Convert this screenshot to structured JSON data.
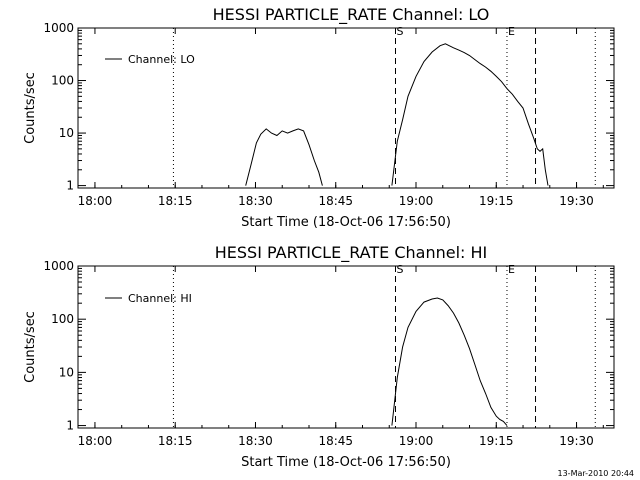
{
  "page": {
    "footer_stamp": "13-Mar-2010 20:44"
  },
  "chart_data": [
    {
      "type": "line",
      "title": "HESSI PARTICLE_RATE Channel: LO",
      "xlabel": "Start Time (18-Oct-06 17:56:50)",
      "ylabel": "Counts/sec",
      "yscale": "log",
      "xlim": [
        "17:56:50",
        "19:37:00"
      ],
      "ylim": [
        0.9,
        1000
      ],
      "x_tick_labels": [
        "18:00",
        "18:15",
        "18:30",
        "18:45",
        "19:00",
        "19:15",
        "19:30"
      ],
      "y_tick_labels": [
        "1",
        "10",
        "100",
        "1000"
      ],
      "legend": {
        "placement": "top-left",
        "label": "Channel: LO"
      },
      "markers": [
        {
          "time": "18:14:40",
          "style": "dotted",
          "label": ""
        },
        {
          "time": "18:56:10",
          "style": "dashed",
          "label": "S"
        },
        {
          "time": "19:17:00",
          "style": "dotted",
          "label": "E"
        },
        {
          "time": "19:22:20",
          "style": "dashed",
          "label": ""
        },
        {
          "time": "19:33:30",
          "style": "dotted",
          "label": ""
        }
      ],
      "series": [
        {
          "name": "Channel: LO",
          "segments": [
            {
              "x": [
                "18:28:10",
                "18:29:10",
                "18:30:10",
                "18:31:00",
                "18:32:00",
                "18:33:00",
                "18:34:00",
                "18:35:00",
                "18:36:00",
                "18:37:00",
                "18:38:00",
                "18:39:00",
                "18:40:00",
                "18:41:00",
                "18:41:50",
                "18:42:30"
              ],
              "y": [
                1,
                2.5,
                6.5,
                9.5,
                12,
                10,
                9,
                11,
                10,
                11,
                12,
                11,
                6,
                3,
                1.8,
                1
              ]
            },
            {
              "x": [
                "18:55:30",
                "18:56:30",
                "18:57:30",
                "18:58:30",
                "19:00:00",
                "19:01:30",
                "19:03:00",
                "19:04:30",
                "19:05:30",
                "19:07:00",
                "19:08:00",
                "19:09:00",
                "19:10:00",
                "19:11:00",
                "19:12:00",
                "19:13:00",
                "19:14:00",
                "19:15:00",
                "19:16:00",
                "19:17:00",
                "19:18:00",
                "19:19:00",
                "19:20:00",
                "19:21:00",
                "19:22:00",
                "19:22:40",
                "19:23:10",
                "19:23:40",
                "19:24:10",
                "19:24:40"
              ],
              "y": [
                1,
                7,
                18,
                50,
                120,
                230,
                350,
                460,
                500,
                420,
                380,
                340,
                300,
                250,
                210,
                180,
                150,
                120,
                95,
                70,
                55,
                40,
                30,
                15,
                8,
                5,
                4.5,
                5,
                2,
                1
              ]
            }
          ]
        }
      ]
    },
    {
      "type": "line",
      "title": "HESSI PARTICLE_RATE Channel: HI",
      "xlabel": "Start Time (18-Oct-06 17:56:50)",
      "ylabel": "Counts/sec",
      "yscale": "log",
      "xlim": [
        "17:56:50",
        "19:37:00"
      ],
      "ylim": [
        0.9,
        1000
      ],
      "x_tick_labels": [
        "18:00",
        "18:15",
        "18:30",
        "18:45",
        "19:00",
        "19:15",
        "19:30"
      ],
      "y_tick_labels": [
        "1",
        "10",
        "100",
        "1000"
      ],
      "legend": {
        "placement": "top-left",
        "label": "Channel: HI"
      },
      "markers": [
        {
          "time": "18:14:40",
          "style": "dotted",
          "label": ""
        },
        {
          "time": "18:56:10",
          "style": "dashed",
          "label": "S"
        },
        {
          "time": "19:17:00",
          "style": "dotted",
          "label": "E"
        },
        {
          "time": "19:22:20",
          "style": "dashed",
          "label": ""
        },
        {
          "time": "19:33:30",
          "style": "dotted",
          "label": ""
        }
      ],
      "series": [
        {
          "name": "Channel: HI",
          "segments": [
            {
              "x": [
                "18:55:30",
                "18:56:30",
                "18:57:30",
                "18:58:30",
                "19:00:00",
                "19:01:30",
                "19:03:00",
                "19:04:00",
                "19:05:00",
                "19:06:00",
                "19:07:00",
                "19:08:00",
                "19:09:00",
                "19:10:00",
                "19:11:00",
                "19:12:00",
                "19:13:00",
                "19:14:00",
                "19:15:00",
                "19:15:40",
                "19:16:20",
                "19:17:00"
              ],
              "y": [
                1,
                8,
                30,
                70,
                140,
                210,
                240,
                250,
                230,
                180,
                130,
                85,
                50,
                28,
                14,
                7,
                4,
                2.2,
                1.5,
                1.3,
                1.2,
                1
              ]
            }
          ]
        }
      ]
    }
  ]
}
